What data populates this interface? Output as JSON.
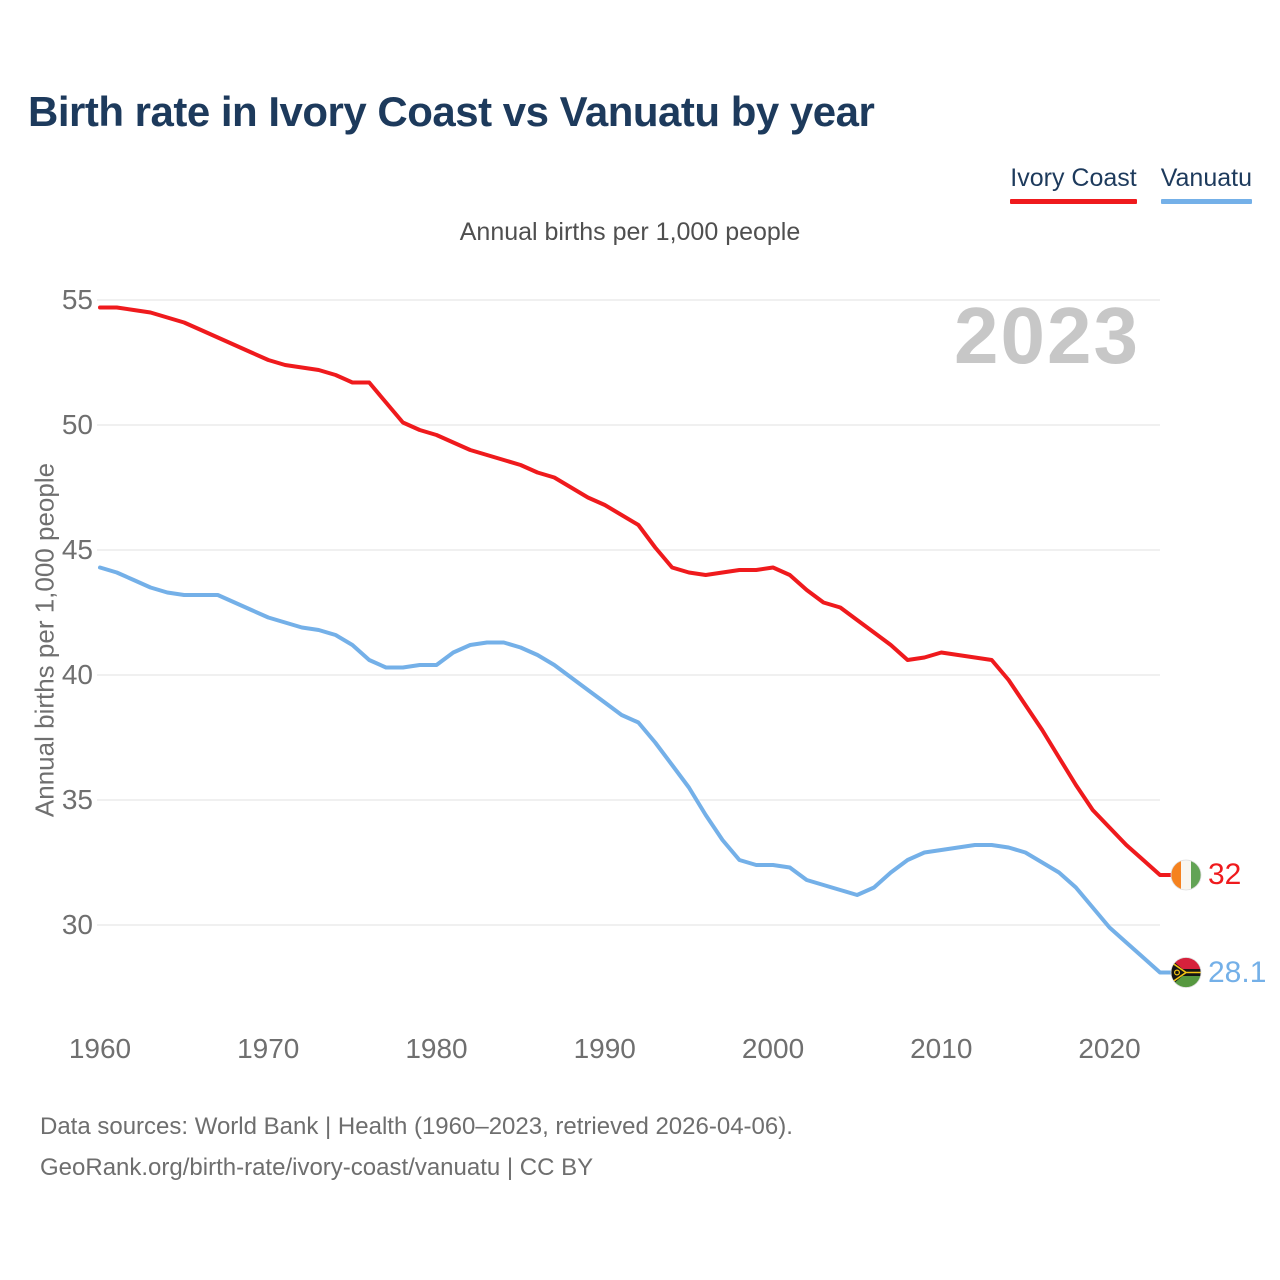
{
  "header": {
    "title": "Birth rate in Ivory Coast vs Vanuatu by year"
  },
  "legend": {
    "items": [
      {
        "label": "Ivory Coast",
        "color": "#ef1a1d"
      },
      {
        "label": "Vanuatu",
        "color": "#74b0e8"
      }
    ]
  },
  "subtitle": "Annual births per 1,000 people",
  "watermark": "2023",
  "y_axis": {
    "title": "Annual births per 1,000 people",
    "ticks": [
      55,
      50,
      45,
      40,
      35,
      30
    ]
  },
  "x_axis": {
    "ticks": [
      1960,
      1970,
      1980,
      1990,
      2000,
      2010,
      2020
    ]
  },
  "footer": {
    "line1": "Data sources: World Bank | Health (1960–2023, retrieved 2026-04-06).",
    "line2": "GeoRank.org/birth-rate/ivory-coast/vanuatu | CC BY"
  },
  "chart_data": {
    "type": "line",
    "title": "Birth rate in Ivory Coast vs Vanuatu by year",
    "ylabel": "Annual births per 1,000 people",
    "xlim": [
      1960,
      2023
    ],
    "ylim": [
      28,
      55.5
    ],
    "grid": "horizontal",
    "legend_position": "top-right",
    "x": [
      1960,
      1961,
      1962,
      1963,
      1964,
      1965,
      1966,
      1967,
      1968,
      1969,
      1970,
      1971,
      1972,
      1973,
      1974,
      1975,
      1976,
      1977,
      1978,
      1979,
      1980,
      1981,
      1982,
      1983,
      1984,
      1985,
      1986,
      1987,
      1988,
      1989,
      1990,
      1991,
      1992,
      1993,
      1994,
      1995,
      1996,
      1997,
      1998,
      1999,
      2000,
      2001,
      2002,
      2003,
      2004,
      2005,
      2006,
      2007,
      2008,
      2009,
      2010,
      2011,
      2012,
      2013,
      2014,
      2015,
      2016,
      2017,
      2018,
      2019,
      2020,
      2021,
      2022,
      2023
    ],
    "series": [
      {
        "name": "Ivory Coast",
        "color": "#ef1a1d",
        "end_label": "32",
        "flag": "ivory-coast-flag-icon",
        "values": [
          54.7,
          54.7,
          54.6,
          54.5,
          54.3,
          54.1,
          53.8,
          53.5,
          53.2,
          52.9,
          52.6,
          52.4,
          52.3,
          52.2,
          52.0,
          51.7,
          51.7,
          50.9,
          50.1,
          49.8,
          49.6,
          49.3,
          49.0,
          48.8,
          48.6,
          48.4,
          48.1,
          47.9,
          47.5,
          47.1,
          46.8,
          46.4,
          46.0,
          45.1,
          44.3,
          44.1,
          44.0,
          44.1,
          44.2,
          44.2,
          44.3,
          44.0,
          43.4,
          42.9,
          42.7,
          42.2,
          41.7,
          41.2,
          40.6,
          40.7,
          40.9,
          40.8,
          40.7,
          40.6,
          39.8,
          38.8,
          37.8,
          36.7,
          35.6,
          34.6,
          33.9,
          33.2,
          32.6,
          32.0
        ]
      },
      {
        "name": "Vanuatu",
        "color": "#74b0e8",
        "end_label": "28.1",
        "flag": "vanuatu-flag-icon",
        "values": [
          44.3,
          44.1,
          43.8,
          43.5,
          43.3,
          43.2,
          43.2,
          43.2,
          42.9,
          42.6,
          42.3,
          42.1,
          41.9,
          41.8,
          41.6,
          41.2,
          40.6,
          40.3,
          40.3,
          40.4,
          40.4,
          40.9,
          41.2,
          41.3,
          41.3,
          41.1,
          40.8,
          40.4,
          39.9,
          39.4,
          38.9,
          38.4,
          38.1,
          37.3,
          36.4,
          35.5,
          34.4,
          33.4,
          32.6,
          32.4,
          32.4,
          32.3,
          31.8,
          31.6,
          31.4,
          31.2,
          31.5,
          32.1,
          32.6,
          32.9,
          33.0,
          33.1,
          33.2,
          33.2,
          33.1,
          32.9,
          32.5,
          32.1,
          31.5,
          30.7,
          29.9,
          29.3,
          28.7,
          28.1
        ]
      }
    ]
  }
}
